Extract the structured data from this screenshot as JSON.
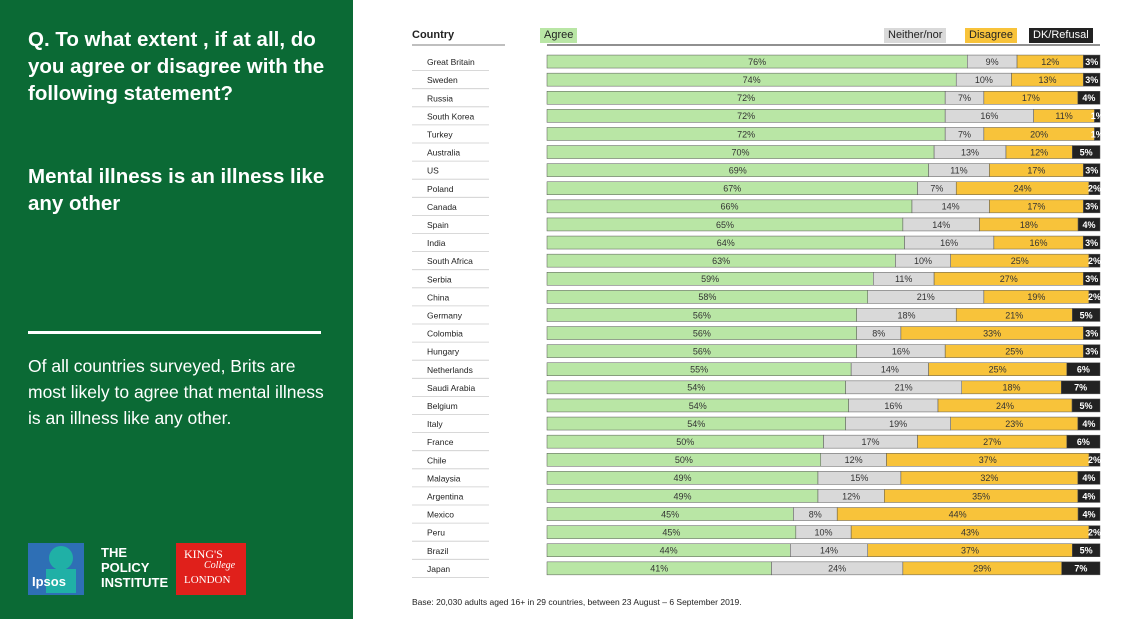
{
  "question": "Q. To what extent , if at all, do you agree or disagree with the following statement?",
  "statement": "Mental illness is an illness like any other",
  "summary": "Of all countries surveyed, Brits are most likely to agree that mental illness is an illness like any other.",
  "logos": {
    "ipsos": "Ipsos",
    "policy_institute": [
      "THE",
      "POLICY",
      "INSTITUTE"
    ],
    "kings": [
      "KING'S",
      "College",
      "LONDON"
    ]
  },
  "base_note": "Base: 20,030 adults aged 16+ in 29 countries, between 23 August – 6 September 2019.",
  "colors": {
    "panel": "#0b6a35",
    "agree": "#b9e6a5",
    "neither": "#d9d9d9",
    "disagree": "#f8c33a",
    "dk": "#222222"
  },
  "chart_data": {
    "type": "bar",
    "orientation": "horizontal",
    "stacked": true,
    "country_header": "Country",
    "series": [
      {
        "name": "Agree",
        "values": [
          76,
          74,
          72,
          72,
          72,
          70,
          69,
          67,
          66,
          65,
          64,
          63,
          59,
          58,
          56,
          56,
          56,
          55,
          54,
          54,
          54,
          50,
          50,
          49,
          49,
          45,
          45,
          44,
          41
        ]
      },
      {
        "name": "Neither/nor",
        "values": [
          9,
          10,
          7,
          16,
          7,
          13,
          11,
          7,
          14,
          14,
          16,
          10,
          11,
          21,
          18,
          8,
          16,
          14,
          21,
          16,
          19,
          17,
          12,
          15,
          12,
          8,
          10,
          14,
          24
        ]
      },
      {
        "name": "Disagree",
        "values": [
          12,
          13,
          17,
          11,
          20,
          12,
          17,
          24,
          17,
          18,
          16,
          25,
          27,
          19,
          21,
          33,
          25,
          25,
          18,
          24,
          23,
          27,
          37,
          32,
          35,
          44,
          43,
          37,
          29
        ]
      },
      {
        "name": "DK/Refusal",
        "values": [
          3,
          3,
          4,
          1,
          1,
          5,
          3,
          2,
          3,
          4,
          3,
          2,
          3,
          2,
          5,
          3,
          3,
          6,
          7,
          5,
          4,
          6,
          2,
          4,
          4,
          4,
          2,
          5,
          7
        ]
      }
    ],
    "categories": [
      "Great Britain",
      "Sweden",
      "Russia",
      "South Korea",
      "Turkey",
      "Australia",
      "US",
      "Poland",
      "Canada",
      "Spain",
      "India",
      "South Africa",
      "Serbia",
      "China",
      "Germany",
      "Colombia",
      "Hungary",
      "Netherlands",
      "Saudi Arabia",
      "Belgium",
      "Italy",
      "France",
      "Chile",
      "Malaysia",
      "Argentina",
      "Mexico",
      "Peru",
      "Brazil",
      "Japan"
    ],
    "value_suffix": "%",
    "xlim": [
      0,
      100
    ],
    "legend": "top"
  }
}
